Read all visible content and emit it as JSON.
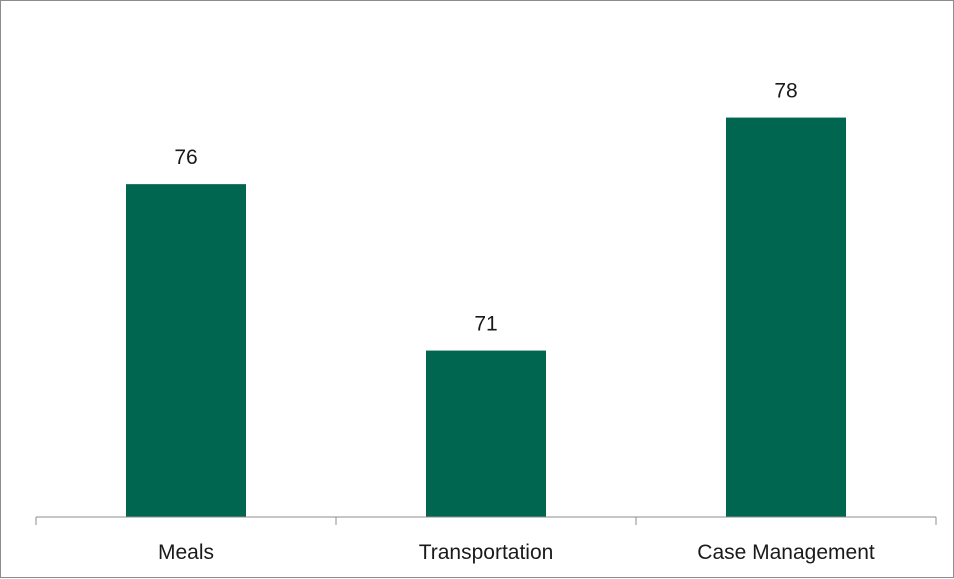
{
  "chart_data": {
    "type": "bar",
    "title": "",
    "xlabel": "",
    "ylabel": "",
    "categories": [
      "Meals",
      "Transportation",
      "Case Management"
    ],
    "values": [
      76,
      71,
      78
    ],
    "data_labels": [
      "76",
      "71",
      "78"
    ],
    "ylim": [
      66,
      80
    ],
    "grid": false,
    "legend": "none",
    "bar_color": "#006650"
  }
}
